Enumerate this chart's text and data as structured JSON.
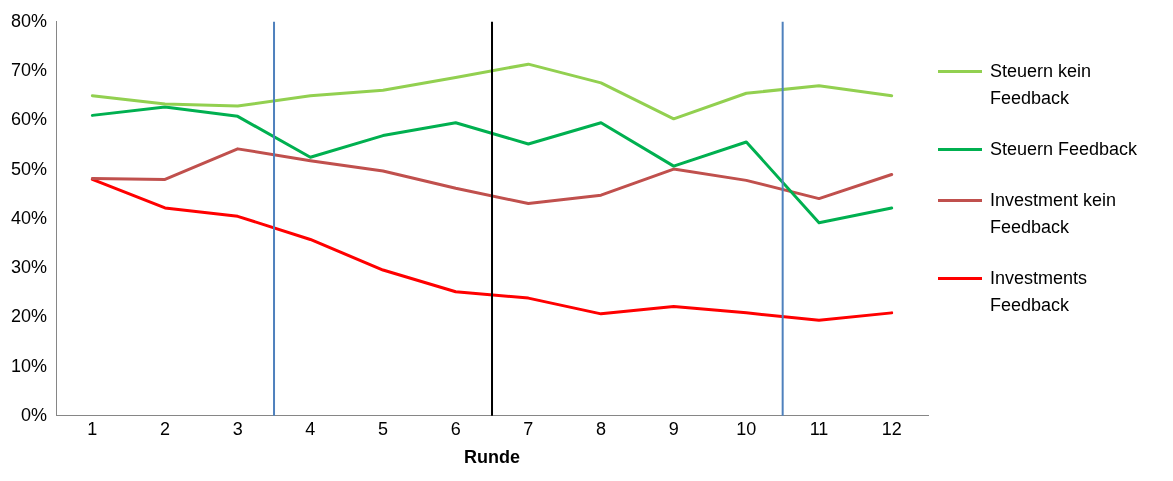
{
  "chart_data": {
    "type": "line",
    "xlabel": "Runde",
    "x": [
      1,
      2,
      3,
      4,
      5,
      6,
      7,
      8,
      9,
      10,
      11,
      12
    ],
    "xlim": [
      0.5,
      12.5
    ],
    "xticks": [
      1,
      2,
      3,
      4,
      5,
      6,
      7,
      8,
      9,
      10,
      11,
      12
    ],
    "ylim": [
      0,
      80
    ],
    "yticks": [
      {
        "value": 0,
        "label": "0%"
      },
      {
        "value": 10,
        "label": "10%"
      },
      {
        "value": 20,
        "label": "20%"
      },
      {
        "value": 30,
        "label": "30%"
      },
      {
        "value": 40,
        "label": "40%"
      },
      {
        "value": 50,
        "label": "50%"
      },
      {
        "value": 60,
        "label": "60%"
      },
      {
        "value": 70,
        "label": "70%"
      },
      {
        "value": 80,
        "label": "80%"
      }
    ],
    "grid": false,
    "legend": "right",
    "marker": "none",
    "line_style": "solid",
    "series": [
      {
        "name": "Steuern kein Feedback",
        "color": "#92d050",
        "values": [
          65.0,
          63.3,
          62.9,
          65.0,
          66.1,
          68.7,
          71.4,
          67.6,
          60.3,
          65.5,
          67.0,
          65.0
        ]
      },
      {
        "name": "Steuern Feedback",
        "color": "#00b050",
        "values": [
          61.0,
          62.7,
          60.8,
          52.5,
          56.9,
          59.5,
          55.2,
          59.5,
          50.7,
          55.6,
          39.2,
          42.2
        ]
      },
      {
        "name": "Investment kein Feedback",
        "color": "#c0504d",
        "values": [
          48.2,
          48.0,
          54.2,
          51.8,
          49.7,
          46.2,
          43.1,
          44.8,
          50.1,
          47.8,
          44.1,
          49.0
        ]
      },
      {
        "name": "Investments Feedback",
        "color": "#ff0000",
        "values": [
          48.0,
          42.2,
          40.5,
          35.8,
          29.6,
          25.2,
          23.9,
          20.7,
          22.2,
          20.9,
          19.4,
          20.9
        ]
      }
    ],
    "ref_lines": [
      {
        "axis": "x",
        "value": 3.5,
        "color": "#4f81bd"
      },
      {
        "axis": "x",
        "value": 6.5,
        "color": "#000000"
      },
      {
        "axis": "x",
        "value": 10.5,
        "color": "#4f81bd"
      }
    ]
  }
}
